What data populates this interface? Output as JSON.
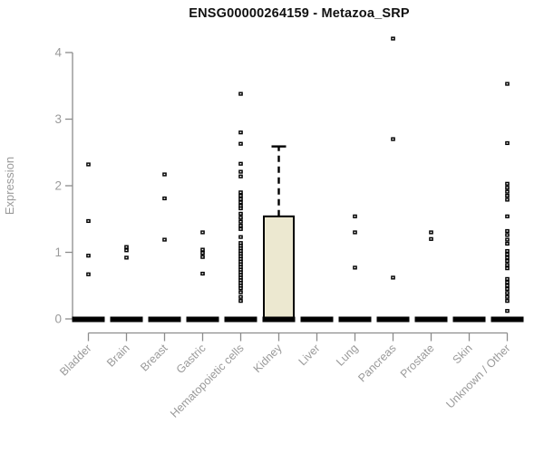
{
  "chart_data": {
    "type": "boxplot",
    "title": "ENSG00000264159 - Metazoa_SRP",
    "xlabel": "",
    "ylabel": "Expression",
    "ylim": [
      0,
      4.35
    ],
    "yticks": [
      0,
      1,
      2,
      3,
      4
    ],
    "grid": false,
    "legend": false,
    "colors": {
      "box_fill": "#ece8d0",
      "box_border": "#000000",
      "median_bar": "#000000",
      "outlier": "#000000",
      "axis": "#8c8c8c",
      "tick_label": "#9a9a9a",
      "title": "#111111",
      "background": "#ffffff"
    },
    "categories": [
      "Bladder",
      "Brain",
      "Breast",
      "Gastric",
      "Hematopoietic cells",
      "Kidney",
      "Liver",
      "Lung",
      "Pancreas",
      "Prostate",
      "Skin",
      "Unknown / Other"
    ],
    "series": [
      {
        "name": "Bladder",
        "q1": 0,
        "median": 0,
        "q3": 0,
        "whisker_low": 0,
        "whisker_high": 0,
        "outliers": [
          2.32,
          1.47,
          0.95,
          0.67
        ]
      },
      {
        "name": "Brain",
        "q1": 0,
        "median": 0,
        "q3": 0,
        "whisker_low": 0,
        "whisker_high": 0,
        "outliers": [
          1.08,
          1.03,
          0.92
        ]
      },
      {
        "name": "Breast",
        "q1": 0,
        "median": 0,
        "q3": 0,
        "whisker_low": 0,
        "whisker_high": 0,
        "outliers": [
          2.17,
          1.81,
          1.19
        ]
      },
      {
        "name": "Gastric",
        "q1": 0,
        "median": 0,
        "q3": 0,
        "whisker_low": 0,
        "whisker_high": 0,
        "outliers": [
          1.3,
          1.04,
          0.99,
          0.93,
          0.68
        ]
      },
      {
        "name": "Hematopoietic cells",
        "q1": 0,
        "median": 0,
        "q3": 0,
        "whisker_low": 0,
        "whisker_high": 0,
        "outliers": [
          3.38,
          2.8,
          2.63,
          2.33,
          2.21,
          2.14,
          1.9,
          1.85,
          1.8,
          1.75,
          1.7,
          1.66,
          1.58,
          1.52,
          1.46,
          1.4,
          1.35,
          1.23,
          1.14,
          1.1,
          1.06,
          1.02,
          0.98,
          0.94,
          0.9,
          0.86,
          0.82,
          0.78,
          0.74,
          0.7,
          0.66,
          0.62,
          0.58,
          0.54,
          0.5,
          0.46,
          0.4,
          0.33,
          0.27
        ]
      },
      {
        "name": "Kidney",
        "q1": 0,
        "median": 0,
        "q3": 1.54,
        "whisker_low": 0,
        "whisker_high": 2.59,
        "outliers": []
      },
      {
        "name": "Liver",
        "q1": 0,
        "median": 0,
        "q3": 0,
        "whisker_low": 0,
        "whisker_high": 0,
        "outliers": []
      },
      {
        "name": "Lung",
        "q1": 0,
        "median": 0,
        "q3": 0,
        "whisker_low": 0,
        "whisker_high": 0,
        "outliers": [
          1.54,
          1.3,
          0.77
        ]
      },
      {
        "name": "Pancreas",
        "q1": 0,
        "median": 0,
        "q3": 0,
        "whisker_low": 0,
        "whisker_high": 0,
        "outliers": [
          4.21,
          2.7,
          0.62
        ]
      },
      {
        "name": "Prostate",
        "q1": 0,
        "median": 0,
        "q3": 0,
        "whisker_low": 0,
        "whisker_high": 0,
        "outliers": [
          1.3,
          1.2
        ]
      },
      {
        "name": "Skin",
        "q1": 0,
        "median": 0,
        "q3": 0,
        "whisker_low": 0,
        "whisker_high": 0,
        "outliers": []
      },
      {
        "name": "Unknown / Other",
        "q1": 0,
        "median": 0,
        "q3": 0,
        "whisker_low": 0,
        "whisker_high": 0,
        "outliers": [
          3.53,
          2.64,
          2.03,
          1.97,
          1.91,
          1.85,
          1.79,
          1.54,
          1.32,
          1.26,
          1.19,
          1.13,
          1.02,
          0.97,
          0.92,
          0.87,
          0.81,
          0.76,
          0.6,
          0.55,
          0.5,
          0.45,
          0.39,
          0.33,
          0.27,
          0.12
        ]
      }
    ]
  }
}
